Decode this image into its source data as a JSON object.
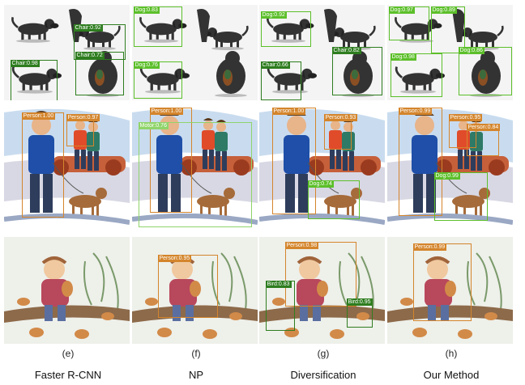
{
  "colors": {
    "green": "#5cbf2a",
    "dark_green": "#2e7d1f",
    "orange": "#d4852c",
    "light_green": "#8fd46a"
  },
  "columns": [
    {
      "letter": "(e)",
      "method": "Faster R-CNN"
    },
    {
      "letter": "(f)",
      "method": "NP"
    },
    {
      "letter": "(g)",
      "method": "Diversification"
    },
    {
      "letter": "(h)",
      "method": "Our Method"
    }
  ],
  "rows": [
    {
      "scene": "dogs",
      "cells": [
        {
          "detections": [
            {
              "label": "Chair:0.92",
              "color": "dark_green"
            },
            {
              "label": "Chair:0.98",
              "color": "dark_green"
            },
            {
              "label": "Chair:0.72",
              "color": "dark_green"
            }
          ]
        },
        {
          "detections": [
            {
              "label": "Dog:0.83",
              "color": "green"
            },
            {
              "label": "Dog:0.76",
              "color": "green"
            }
          ]
        },
        {
          "detections": [
            {
              "label": "Dog:0.92",
              "color": "green"
            },
            {
              "label": "Chair:0.82",
              "color": "dark_green"
            },
            {
              "label": "Chair:0.66",
              "color": "dark_green"
            }
          ]
        },
        {
          "detections": [
            {
              "label": "Dog:0.97",
              "color": "green"
            },
            {
              "label": "Dog:0.89",
              "color": "green"
            },
            {
              "label": "Dog:0.98",
              "color": "green"
            },
            {
              "label": "Dog:0.86",
              "color": "green"
            }
          ]
        }
      ]
    },
    {
      "scene": "people",
      "cells": [
        {
          "detections": [
            {
              "label": "Person:1.00",
              "color": "orange"
            },
            {
              "label": "Person:0.97",
              "color": "orange"
            }
          ]
        },
        {
          "detections": [
            {
              "label": "Person:1.00",
              "color": "orange"
            },
            {
              "label": "Motor:0.76",
              "color": "light_green"
            }
          ]
        },
        {
          "detections": [
            {
              "label": "Person:1.00",
              "color": "orange"
            },
            {
              "label": "Person:0.93",
              "color": "orange"
            },
            {
              "label": "Dog:0.74",
              "color": "green"
            }
          ]
        },
        {
          "detections": [
            {
              "label": "Person:0.99",
              "color": "orange"
            },
            {
              "label": "Person:0.95",
              "color": "orange"
            },
            {
              "label": "Person:0.84",
              "color": "orange"
            },
            {
              "label": "Dog:0.99",
              "color": "green"
            }
          ]
        }
      ]
    },
    {
      "scene": "boy",
      "cells": [
        {
          "detections": []
        },
        {
          "detections": [
            {
              "label": "Person:0.95",
              "color": "orange"
            }
          ]
        },
        {
          "detections": [
            {
              "label": "Person:0.98",
              "color": "orange"
            },
            {
              "label": "Bird:0.83",
              "color": "dark_green"
            },
            {
              "label": "Bird:0.95",
              "color": "dark_green"
            }
          ]
        },
        {
          "detections": [
            {
              "label": "Person:0.99",
              "color": "orange"
            }
          ]
        }
      ]
    }
  ]
}
